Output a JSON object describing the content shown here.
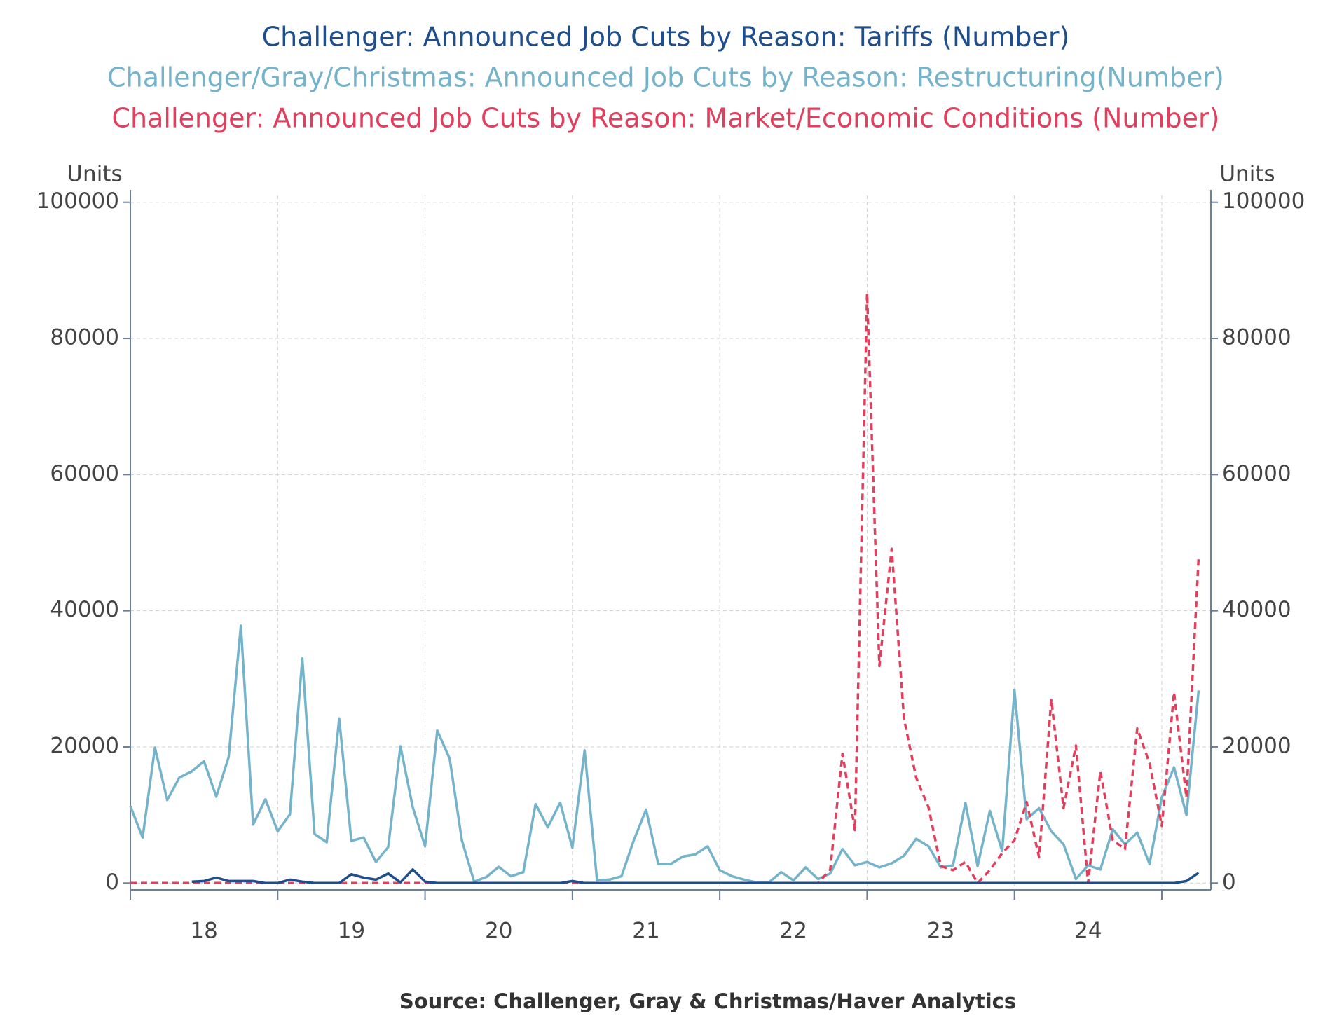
{
  "chart_data": {
    "type": "line",
    "y_label": "Units",
    "y2_label": "Units",
    "source": "Source:  Challenger, Gray & Christmas/Haver Analytics",
    "x": [
      18,
      18.083,
      18.167,
      18.25,
      18.333,
      18.417,
      18.5,
      18.583,
      18.667,
      18.75,
      18.833,
      18.917,
      19,
      19.083,
      19.167,
      19.25,
      19.333,
      19.417,
      19.5,
      19.583,
      19.667,
      19.75,
      19.833,
      19.917,
      20,
      20.083,
      20.167,
      20.25,
      20.333,
      20.417,
      20.5,
      20.583,
      20.667,
      20.75,
      20.833,
      20.917,
      21,
      21.083,
      21.167,
      21.25,
      21.333,
      21.417,
      21.5,
      21.583,
      21.667,
      21.75,
      21.833,
      21.917,
      22,
      22.083,
      22.167,
      22.25,
      22.333,
      22.417,
      22.5,
      22.583,
      22.667,
      22.75,
      22.833,
      22.917,
      23,
      23.083,
      23.167,
      23.25,
      23.333,
      23.417,
      23.5,
      23.583,
      23.667,
      23.75,
      23.833,
      23.917,
      24,
      24.083,
      24.167,
      24.25,
      24.333,
      24.417,
      24.5,
      24.583,
      24.667,
      24.75,
      24.833,
      24.917,
      25,
      25.083,
      25.167,
      25.25
    ],
    "xlim": [
      18,
      25.333
    ],
    "xticks": [
      {
        "value": 18.5,
        "label": "18"
      },
      {
        "value": 19.5,
        "label": "19"
      },
      {
        "value": 20.5,
        "label": "20"
      },
      {
        "value": 21.5,
        "label": "21"
      },
      {
        "value": 22.5,
        "label": "22"
      },
      {
        "value": 23.5,
        "label": "23"
      },
      {
        "value": 24.5,
        "label": "24"
      }
    ],
    "xgrid": [
      18,
      19,
      20,
      21,
      22,
      23,
      24,
      25
    ],
    "ylim": [
      -1000,
      101000
    ],
    "yticks": [
      0,
      20000,
      40000,
      60000,
      80000,
      100000
    ],
    "y2lim": [
      -1000,
      101000
    ],
    "y2ticks": [
      0,
      20000,
      40000,
      60000,
      80000,
      100000
    ],
    "grid": true,
    "series": [
      {
        "name": "Challenger: Announced Job Cuts by Reason: Tariffs (Number)",
        "color": "#1f4e8c",
        "dashed": false,
        "values": [
          null,
          null,
          null,
          null,
          null,
          200,
          300,
          800,
          300,
          300,
          300,
          0,
          0,
          500,
          200,
          0,
          0,
          0,
          1300,
          800,
          500,
          1400,
          100,
          2000,
          200,
          0,
          0,
          0,
          0,
          0,
          0,
          0,
          0,
          0,
          0,
          0,
          300,
          0,
          0,
          0,
          0,
          0,
          0,
          0,
          0,
          0,
          0,
          0,
          0,
          0,
          0,
          0,
          0,
          0,
          0,
          0,
          0,
          0,
          0,
          0,
          0,
          0,
          0,
          0,
          0,
          0,
          0,
          0,
          0,
          0,
          0,
          0,
          0,
          0,
          0,
          0,
          0,
          0,
          0,
          0,
          0,
          0,
          0,
          0,
          0,
          0,
          300,
          1500
        ]
      },
      {
        "name": "Challenger/Gray/Christmas: Announced Job Cuts by Reason: Restructuring(Number)",
        "color": "#74b3c9",
        "dashed": false,
        "values": [
          11300,
          6700,
          19900,
          12200,
          15500,
          16400,
          17900,
          12700,
          18500,
          37800,
          8600,
          12300,
          7600,
          10100,
          33000,
          7200,
          6000,
          24200,
          6200,
          6700,
          3100,
          5300,
          20100,
          11100,
          5400,
          22400,
          18300,
          6300,
          200,
          900,
          2400,
          1000,
          1600,
          11600,
          8200,
          11800,
          5200,
          19500,
          400,
          500,
          1000,
          6300,
          10800,
          2800,
          2800,
          3900,
          4200,
          5400,
          1900,
          1000,
          500,
          100,
          100,
          1600,
          400,
          2300,
          600,
          1400,
          5000,
          2600,
          3100,
          2300,
          2900,
          4000,
          6500,
          5400,
          2300,
          2600,
          11800,
          2500,
          10600,
          4700,
          28300,
          9400,
          11000,
          7600,
          5700,
          600,
          2600,
          2000,
          7900,
          5700,
          7400,
          2800,
          12600,
          17000,
          10000,
          28300
        ]
      },
      {
        "name": "Challenger: Announced Job Cuts by Reason: Market/Economic Conditions (Number)",
        "color": "#e0405e",
        "dashed": true,
        "values": [
          0,
          0,
          0,
          0,
          0,
          0,
          0,
          0,
          0,
          0,
          0,
          0,
          0,
          0,
          0,
          0,
          0,
          0,
          0,
          0,
          0,
          0,
          0,
          0,
          0,
          0,
          0,
          0,
          0,
          0,
          0,
          0,
          0,
          0,
          0,
          0,
          0,
          0,
          0,
          0,
          0,
          0,
          0,
          0,
          0,
          0,
          0,
          0,
          0,
          0,
          0,
          0,
          0,
          0,
          0,
          0,
          0,
          2000,
          19000,
          7800,
          86600,
          31900,
          49100,
          24200,
          15500,
          11100,
          2500,
          1900,
          3100,
          0,
          1900,
          4400,
          6300,
          11900,
          3800,
          27000,
          11000,
          20200,
          0,
          16400,
          6300,
          5000,
          22700,
          17600,
          8400,
          28000,
          12600,
          47900
        ]
      }
    ]
  }
}
